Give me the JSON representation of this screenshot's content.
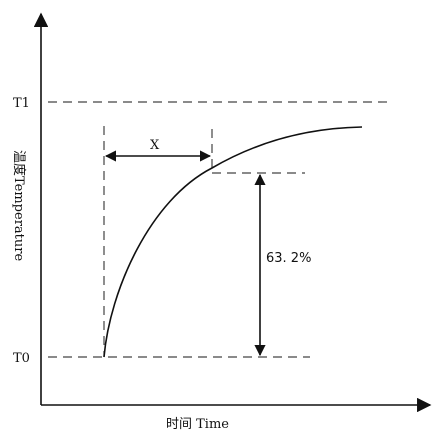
{
  "diagram": {
    "labels": {
      "t1": "T1",
      "t0": "T0",
      "x": "X",
      "percent": "63. 2%",
      "y_axis": "温度Temperature",
      "x_axis": "时间 Time"
    }
  }
}
